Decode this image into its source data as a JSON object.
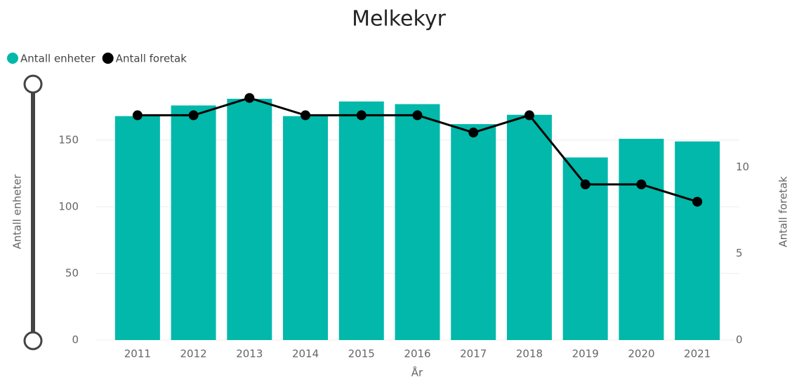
{
  "chart_data": {
    "type": "bar_line",
    "title": "Melkekyr",
    "categories": [
      "2011",
      "2012",
      "2013",
      "2014",
      "2015",
      "2016",
      "2017",
      "2018",
      "2019",
      "2020",
      "2021"
    ],
    "series": [
      {
        "name": "Antall enheter",
        "color": "#01b8aa",
        "values": [
          168,
          176,
          181,
          168,
          179,
          177,
          162,
          169,
          137,
          151,
          149
        ]
      },
      {
        "name": "Antall foretak",
        "color": "#000000",
        "axis": "y2",
        "values": [
          13,
          13,
          14,
          13,
          13,
          13,
          12,
          13,
          9,
          9,
          8
        ]
      }
    ],
    "xlabel": "År",
    "ylabel": "Antall enheter",
    "y2label": "Antall foretak",
    "ylim": [
      0,
      192
    ],
    "yticks": [
      0,
      50,
      100,
      150
    ],
    "y2lim": [
      0,
      14.8
    ],
    "y2ticks": [
      0,
      5,
      10
    ],
    "grid": true,
    "legend": "top-left"
  }
}
